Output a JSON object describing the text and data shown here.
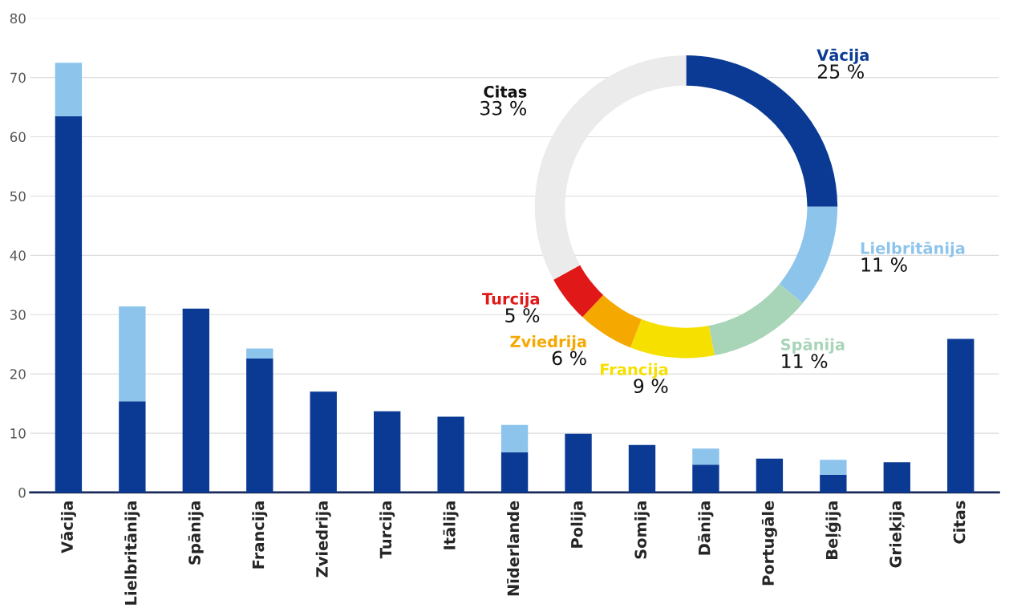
{
  "chart_data": [
    {
      "type": "bar",
      "stacked": true,
      "categories": [
        "Vācija",
        "Lielbritānija",
        "Spānija",
        "Francija",
        "Zviedrija",
        "Turcija",
        "Itālija",
        "Nīderlande",
        "Polija",
        "Somija",
        "Dānija",
        "Portugāle",
        "Beļģija",
        "Grieķija",
        "Citas"
      ],
      "series": [
        {
          "color": "#0a3a94",
          "values": [
            63.5,
            15.4,
            31.0,
            22.6,
            17.0,
            13.7,
            12.8,
            6.8,
            9.9,
            8.0,
            4.7,
            5.7,
            3.0,
            5.1,
            25.9
          ]
        },
        {
          "color": "#8cc4ec",
          "values": [
            9.0,
            16.0,
            null,
            1.7,
            null,
            null,
            null,
            4.6,
            null,
            null,
            2.7,
            null,
            2.5,
            null,
            null
          ]
        }
      ],
      "ylim": [
        0,
        80
      ],
      "yticks": [
        0,
        10,
        20,
        30,
        40,
        50,
        60,
        70,
        80
      ],
      "grid": "y",
      "legend": false
    },
    {
      "type": "donut",
      "categories": [
        "Vācija",
        "Lielbritānija",
        "Spānija",
        "Francija",
        "Zviedrija",
        "Turcija",
        "Citas"
      ],
      "values": [
        25,
        11,
        11,
        9,
        6,
        5,
        33
      ],
      "colors": [
        "#0a3a94",
        "#8cc4ec",
        "#a8d4b8",
        "#f5e000",
        "#f5a800",
        "#e01818",
        "#ebebeb"
      ],
      "value_labels": [
        "25 %",
        "11 %",
        "11 %",
        "9 %",
        "6 %",
        "5 %",
        "33 %"
      ]
    }
  ]
}
